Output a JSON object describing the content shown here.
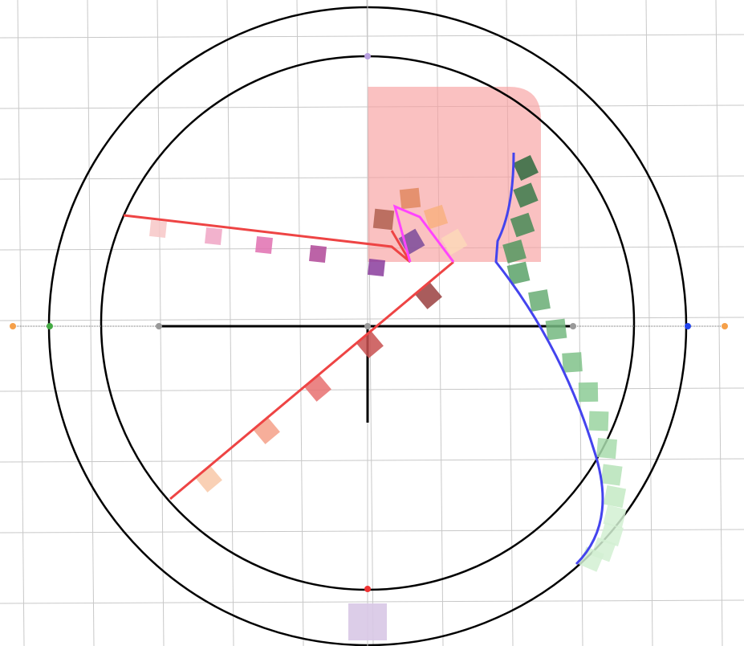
{
  "diagram": {
    "background": "#ffffff",
    "colors": {
      "grid": "#c8c8c8",
      "circle": "#000000",
      "axis": "#000000",
      "pink_region": "#f7a0a0",
      "red_line": "#ee4444",
      "magenta_line": "#ff44ff",
      "blue_curve": "#4444ee",
      "lavender_box": "#d8c8e6",
      "orange_dot": "#f5a04a",
      "green_dot": "#44aa44",
      "gray_dot": "#999999",
      "blue_dot": "#2244ee",
      "red_dot": "#ee3333",
      "lavender_dot": "#b8a0e0"
    },
    "square_series": {
      "pink_to_purple": [
        "#f7c7c7",
        "#f0a4c4",
        "#e070b0",
        "#b04898",
        "#8a3c9c",
        "#7a4a9a"
      ],
      "salmon_to_brown": [
        "#f8c8a8",
        "#f4a088",
        "#e87070",
        "#c85050",
        "#9a4040",
        "#8a5050"
      ],
      "peach_to_brown": [
        "#fcd8b8",
        "#f8b080",
        "#e08860",
        "#b06050"
      ],
      "green_gradient": [
        "#2e6a3e",
        "#3a7a4a",
        "#468a56",
        "#52985f",
        "#5aa268",
        "#68ad74",
        "#74b880",
        "#80c28a",
        "#8ccb95",
        "#9ad4a0",
        "#a8dcad",
        "#b6e3b8",
        "#c4eac4",
        "#d2f0d2"
      ]
    }
  }
}
